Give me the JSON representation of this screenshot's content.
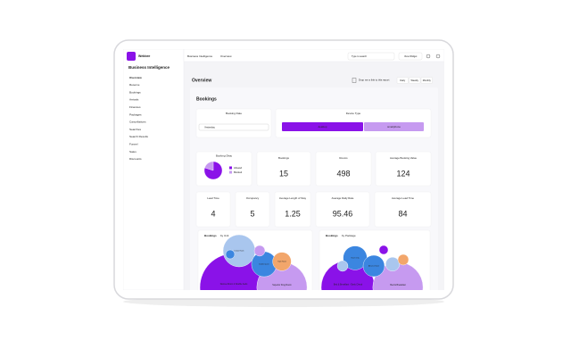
{
  "brand": "Webbee",
  "sidebar": {
    "title": "Business Intelligence",
    "items": [
      "Overview",
      "Reserve",
      "Bookings",
      "Arrivals",
      "Finances",
      "Packages",
      "Cancellations",
      "Searches",
      "Search Results",
      "Funnel",
      "Sales",
      "Discounts"
    ]
  },
  "topbar": {
    "breadcrumb": [
      "Business Intelligence",
      "Overview"
    ],
    "search": "Type to search",
    "button": "View Widget"
  },
  "header": {
    "title": "Overview",
    "share": "Drop me a link to this report",
    "periods": [
      "Daily",
      "Weekly",
      "Monthly"
    ]
  },
  "section": "Bookings",
  "filters": {
    "date_label": "Booking Date",
    "date_value": "Yesterday",
    "device_label": "Device Type",
    "devices": [
      "desktop",
      "smartphone"
    ]
  },
  "pie": {
    "title": "Booking Okay",
    "series": [
      {
        "name": "Allowed",
        "color": "#8a12e8",
        "value": 12
      },
      {
        "name": "Blocked",
        "color": "#c69af0",
        "value": 3
      }
    ]
  },
  "kpis": [
    {
      "label": "Bookings",
      "value": 15
    },
    {
      "label": "Rooms",
      "value": 498
    },
    {
      "label": "Average Booking Value",
      "value": 124
    },
    {
      "label": "Lead Time",
      "value": 4
    },
    {
      "label": "Occupancy",
      "value": 5
    },
    {
      "label": "Average Length of Stay",
      "value": 1.25
    },
    {
      "label": "Average Daily Rate",
      "value": 95.46
    },
    {
      "label": "Average Lead Time",
      "value": 84
    }
  ],
  "bubbles": [
    {
      "title": "Bookings",
      "by": "by Unit",
      "items": [
        {
          "label": "Deluxe Room 2 Double beds",
          "value": 40,
          "color": "#8a12e8"
        },
        {
          "label": "Superior King Room",
          "value": 22,
          "color": "#c69af0"
        },
        {
          "label": "Deluxe Room",
          "value": 9,
          "color": "#a9c6ee"
        },
        {
          "label": "Double Queen",
          "value": 5.5,
          "color": "#3b86e0"
        },
        {
          "label": "Triple Room",
          "value": 3,
          "color": "#f2a66b"
        },
        {
          "value": 1,
          "color": "#c69af0"
        },
        {
          "value": 0.7,
          "color": "#3b86e0"
        }
      ]
    },
    {
      "title": "Bookings",
      "by": "by Package",
      "items": [
        {
          "label": "Bed & Breakfast - Early Check",
          "value": 25,
          "color": "#8a12e8"
        },
        {
          "label": "Bed & Breakfast",
          "value": 22,
          "color": "#c69af0"
        },
        {
          "label": "Room Only",
          "value": 5,
          "color": "#3b86e0"
        },
        {
          "label": "Advance Saver",
          "value": 4,
          "color": "#3b86e0"
        },
        {
          "value": 1.7,
          "color": "#a9c6ee"
        },
        {
          "value": 1,
          "color": "#f2a66b"
        },
        {
          "value": 1,
          "color": "#a9c6ee"
        },
        {
          "value": 0.7,
          "color": "#8a12e8"
        }
      ]
    }
  ]
}
